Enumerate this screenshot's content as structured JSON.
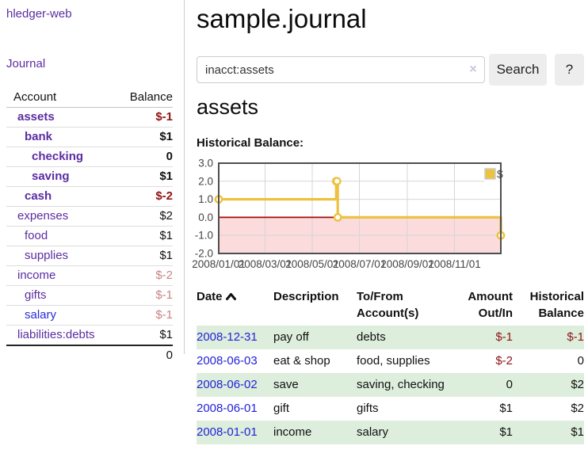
{
  "app": {
    "title": "hledger-web"
  },
  "sidebar": {
    "journal_link": "Journal",
    "table_headers": {
      "account": "Account",
      "balance": "Balance"
    },
    "accounts": [
      {
        "name": "assets",
        "balance": "$-1",
        "level": 1,
        "emphasis": true,
        "tone": "neg",
        "link_color": "purple"
      },
      {
        "name": "bank",
        "balance": "$1",
        "level": 2,
        "emphasis": true,
        "tone": "plain",
        "link_color": "purple"
      },
      {
        "name": "checking",
        "balance": "0",
        "level": 3,
        "emphasis": true,
        "tone": "plain",
        "link_color": "purple"
      },
      {
        "name": "saving",
        "balance": "$1",
        "level": 3,
        "emphasis": true,
        "tone": "plain",
        "link_color": "purple"
      },
      {
        "name": "cash",
        "balance": "$-2",
        "level": 2,
        "emphasis": true,
        "tone": "neg",
        "link_color": "purple"
      },
      {
        "name": "expenses",
        "balance": "$2",
        "level": 1,
        "emphasis": false,
        "tone": "plain",
        "link_color": "purple"
      },
      {
        "name": "food",
        "balance": "$1",
        "level": 2,
        "emphasis": false,
        "tone": "plain",
        "link_color": "purple"
      },
      {
        "name": "supplies",
        "balance": "$1",
        "level": 2,
        "emphasis": false,
        "tone": "plain",
        "link_color": "purple"
      },
      {
        "name": "income",
        "balance": "$-2",
        "level": 1,
        "emphasis": false,
        "tone": "negsoft",
        "link_color": "purple"
      },
      {
        "name": "gifts",
        "balance": "$-1",
        "level": 2,
        "emphasis": false,
        "tone": "negsoft",
        "link_color": "purple"
      },
      {
        "name": "salary",
        "balance": "$-1",
        "level": 2,
        "emphasis": false,
        "tone": "negsoft",
        "link_color": "blue"
      },
      {
        "name": "liabilities:debts",
        "balance": "$1",
        "level": 1,
        "emphasis": false,
        "tone": "plain",
        "link_color": "purple"
      }
    ],
    "total": "0"
  },
  "main": {
    "title": "sample.journal",
    "search": {
      "value": "inacct:assets",
      "clear_icon": "×",
      "search_button": "Search",
      "help_button": "?"
    },
    "account_heading": "assets",
    "section_label": "Historical Balance:"
  },
  "register": {
    "headers": {
      "date": "Date",
      "description": "Description",
      "tofrom": "To/From Account(s)",
      "amount": "Amount Out/In",
      "balance": "Historical Balance"
    },
    "rows": [
      {
        "date": "2008-12-31",
        "description": "pay off",
        "accounts": "debts",
        "amount": "$-1",
        "amount_tone": "neg",
        "balance": "$-1",
        "balance_tone": "neg"
      },
      {
        "date": "2008-06-03",
        "description": "eat & shop",
        "accounts": "food, supplies",
        "amount": "$-2",
        "amount_tone": "neg",
        "balance": "0",
        "balance_tone": "plain"
      },
      {
        "date": "2008-06-02",
        "description": "save",
        "accounts": "saving, checking",
        "amount": "0",
        "amount_tone": "plain",
        "balance": "$2",
        "balance_tone": "plain"
      },
      {
        "date": "2008-06-01",
        "description": "gift",
        "accounts": "gifts",
        "amount": "$1",
        "amount_tone": "plain",
        "balance": "$2",
        "balance_tone": "plain"
      },
      {
        "date": "2008-01-01",
        "description": "income",
        "accounts": "salary",
        "amount": "$1",
        "amount_tone": "plain",
        "balance": "$1",
        "balance_tone": "plain"
      }
    ]
  },
  "chart_data": {
    "type": "line",
    "step": true,
    "title": "Historical Balance of assets",
    "series": [
      {
        "name": "$",
        "color": "#edc240",
        "points": [
          [
            "2008-01-01",
            1
          ],
          [
            "2008-06-01",
            2
          ],
          [
            "2008-06-02",
            2
          ],
          [
            "2008-06-03",
            0
          ],
          [
            "2008-12-31",
            -1
          ]
        ]
      }
    ],
    "xlim": [
      "2008-01-01",
      "2008-12-31"
    ],
    "ylim": [
      -2,
      3
    ],
    "x_ticks": [
      "2008-01-01",
      "2008-03-01",
      "2008-05-01",
      "2008-07-01",
      "2008-09-01",
      "2008-11-01"
    ],
    "y_ticks": [
      3.0,
      2.0,
      1.0,
      0.0,
      -1.0,
      -2.0
    ],
    "legend": {
      "position": "top-right",
      "label": "$"
    },
    "grid": true,
    "grid_color": "#d6d6d6",
    "border_color": "#4f4f4f",
    "tick_text_color": "#444444",
    "zero_line_color": "#a50b0b",
    "negative_region_fill": "#fbdbdb"
  }
}
